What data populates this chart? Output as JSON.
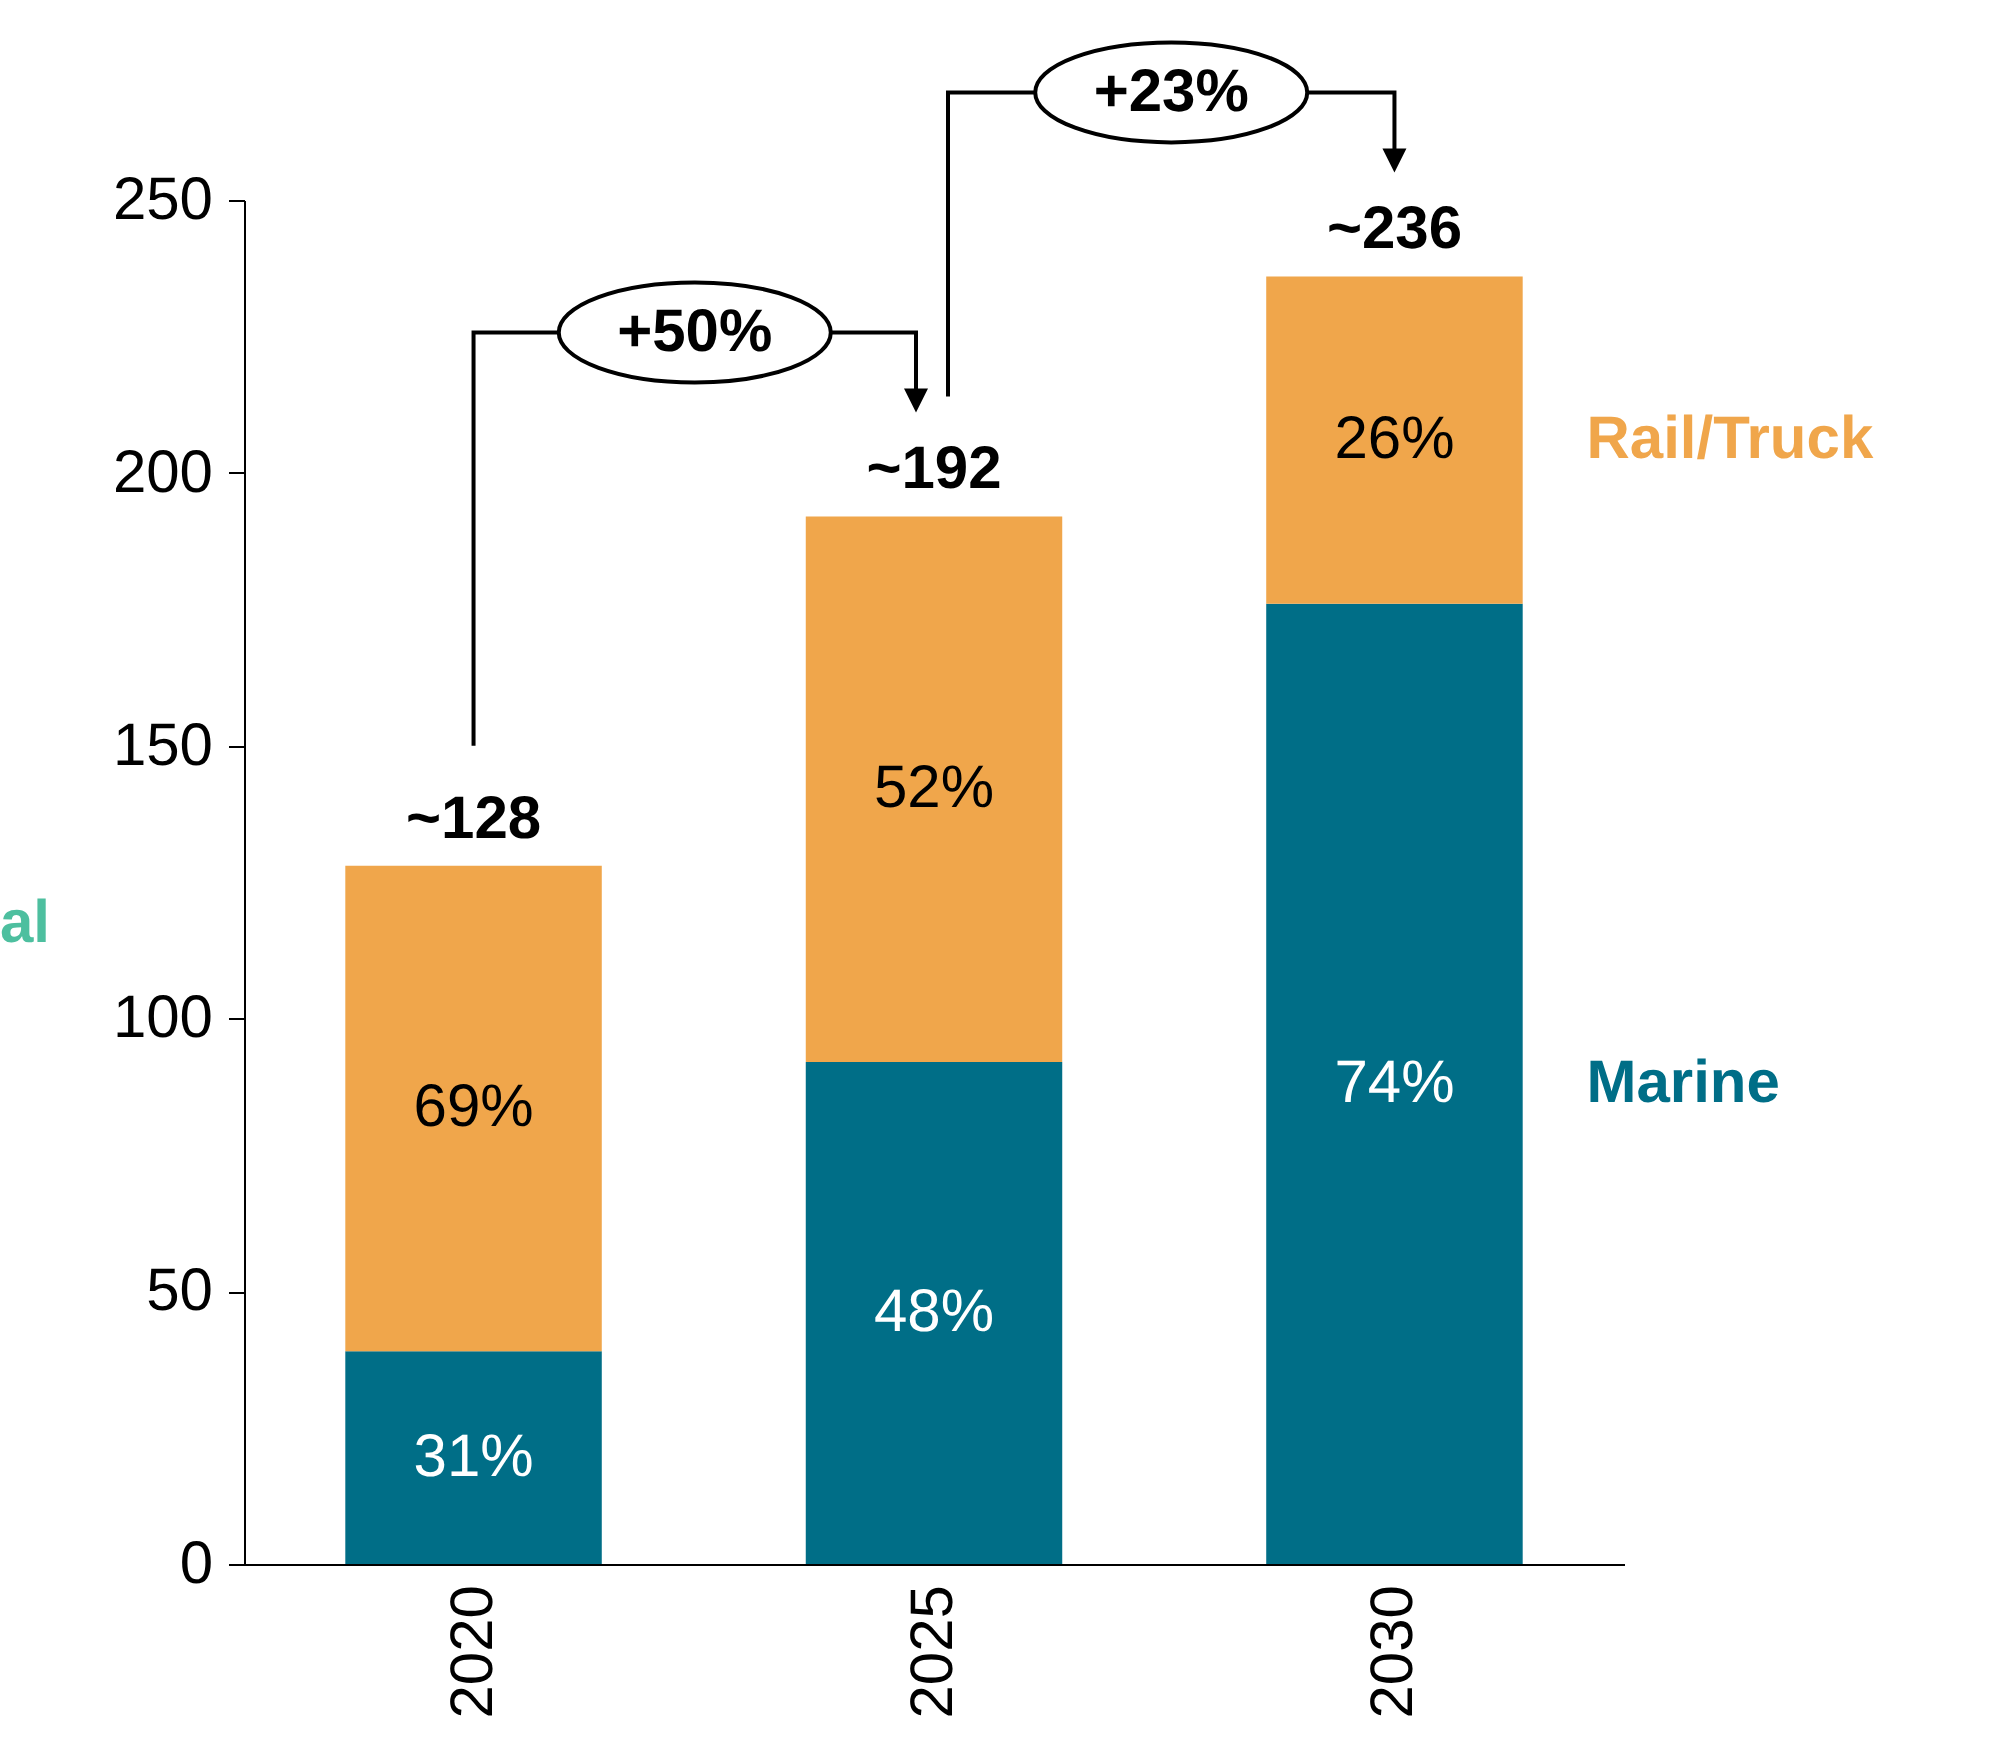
{
  "chart_data": {
    "type": "bar",
    "stacked": true,
    "categories": [
      "2020",
      "2025",
      "2030"
    ],
    "series": [
      {
        "name": "Marine",
        "color": "#006e87",
        "values": [
          39,
          92,
          176
        ]
      },
      {
        "name": "Rail/Truck",
        "color": "#f0a64b",
        "values": [
          89,
          100,
          60
        ]
      }
    ],
    "totals": [
      "~128",
      "~192",
      "~236"
    ],
    "ylim": [
      0,
      250
    ],
    "yticks": [
      0,
      50,
      100,
      150,
      200,
      250
    ],
    "grid": false,
    "legend": false,
    "annotations": [
      "+50%",
      "+23%",
      "al",
      "31%",
      "48%",
      "74%",
      "69%",
      "52%",
      "26%"
    ]
  }
}
